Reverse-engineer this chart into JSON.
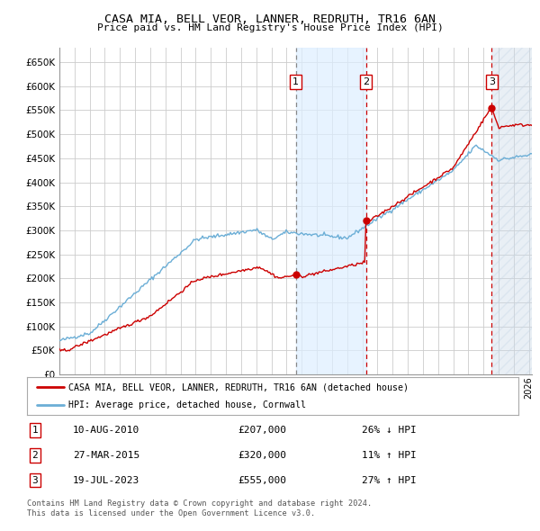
{
  "title1": "CASA MIA, BELL VEOR, LANNER, REDRUTH, TR16 6AN",
  "title2": "Price paid vs. HM Land Registry's House Price Index (HPI)",
  "ylim": [
    0,
    680000
  ],
  "yticks": [
    0,
    50000,
    100000,
    150000,
    200000,
    250000,
    300000,
    350000,
    400000,
    450000,
    500000,
    550000,
    600000,
    650000
  ],
  "xlim_start": 1995.0,
  "xlim_end": 2026.2,
  "transactions": [
    {
      "date_num": 2010.609,
      "price": 207000,
      "label": "1",
      "vline_style": "dashed_grey"
    },
    {
      "date_num": 2015.236,
      "price": 320000,
      "label": "2",
      "vline_style": "dashed_red"
    },
    {
      "date_num": 2023.548,
      "price": 555000,
      "label": "3",
      "vline_style": "dashed_red"
    }
  ],
  "legend_line1": "CASA MIA, BELL VEOR, LANNER, REDRUTH, TR16 6AN (detached house)",
  "legend_line2": "HPI: Average price, detached house, Cornwall",
  "table": [
    {
      "num": "1",
      "date": "10-AUG-2010",
      "price": "£207,000",
      "hpi": "26% ↓ HPI"
    },
    {
      "num": "2",
      "date": "27-MAR-2015",
      "price": "£320,000",
      "hpi": "11% ↑ HPI"
    },
    {
      "num": "3",
      "date": "19-JUL-2023",
      "price": "£555,000",
      "hpi": "27% ↑ HPI"
    }
  ],
  "footnote1": "Contains HM Land Registry data © Crown copyright and database right 2024.",
  "footnote2": "This data is licensed under the Open Government Licence v3.0.",
  "hpi_color": "#6baed6",
  "price_color": "#cc0000",
  "shade_color": "#ddeeff",
  "grid_color": "#cccccc",
  "bg_color": "#ffffff"
}
